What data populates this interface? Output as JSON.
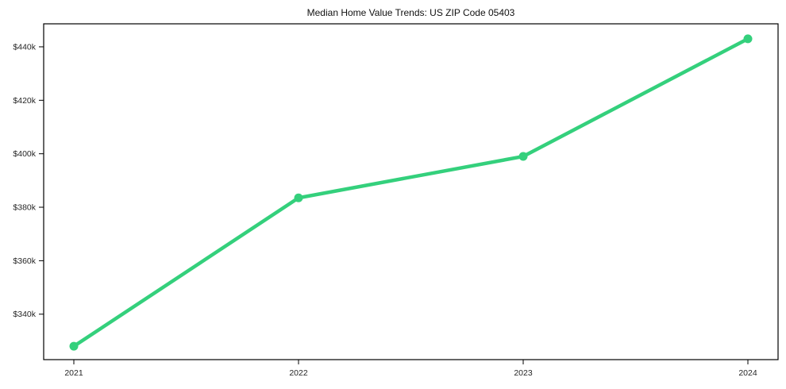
{
  "chart_data": {
    "type": "line",
    "title": "Median Home Value Trends: US ZIP Code 05403",
    "categories": [
      "2021",
      "2022",
      "2023",
      "2024"
    ],
    "series": [
      {
        "name": "Median Home Value",
        "values": [
          328000,
          383500,
          399000,
          443000
        ]
      }
    ],
    "y_ticks": [
      {
        "label": "$340k",
        "value": 340000
      },
      {
        "label": "$360k",
        "value": 360000
      },
      {
        "label": "$380k",
        "value": 380000
      },
      {
        "label": "$400k",
        "value": 400000
      },
      {
        "label": "$420k",
        "value": 420000
      },
      {
        "label": "$440k",
        "value": 440000
      }
    ],
    "ylim": [
      323000,
      448600
    ],
    "xlabel": "",
    "ylabel": "",
    "grid": false,
    "legend": "none",
    "line_color": "#34d07c",
    "frame_color": "#000000",
    "tick_color": "#000000",
    "background_color": "#ffffff"
  }
}
